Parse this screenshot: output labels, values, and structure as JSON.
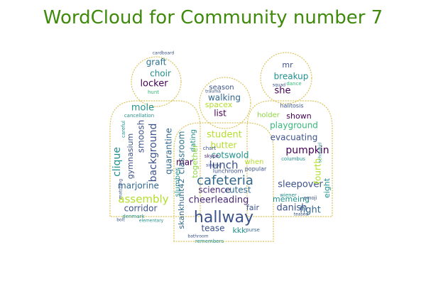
{
  "title": "WordCloud for Community number 7",
  "palette": [
    "#440154",
    "#3b528b",
    "#21918c",
    "#5ec962",
    "#b5de2b",
    "#31688e",
    "#35b779",
    "#482878",
    "#2c728e",
    "#90d743"
  ],
  "outline_color": "#d9c45a",
  "words": [
    {
      "text": "hallway",
      "color": "#3b528b"
    },
    {
      "text": "cafeteria",
      "color": "#31688e"
    },
    {
      "text": "lunch",
      "color": "#3b528b"
    },
    {
      "text": "cheerleading",
      "color": "#482878"
    },
    {
      "text": "assembly",
      "color": "#b5de2b"
    },
    {
      "text": "marjorine",
      "color": "#31688e"
    },
    {
      "text": "pumpkin",
      "color": "#440154"
    },
    {
      "text": "playground",
      "color": "#35b779"
    },
    {
      "text": "sleepover",
      "color": "#3b528b"
    },
    {
      "text": "evacuating",
      "color": "#3b528b"
    },
    {
      "text": "danish",
      "color": "#3b528b"
    },
    {
      "text": "memeing",
      "color": "#21918c"
    },
    {
      "text": "fight",
      "color": "#31688e"
    },
    {
      "text": "fourth",
      "color": "#b5de2b"
    },
    {
      "text": "corridor",
      "color": "#3b528b"
    },
    {
      "text": "clique",
      "color": "#21918c"
    },
    {
      "text": "gymnasium",
      "color": "#3b528b"
    },
    {
      "text": "background",
      "color": "#3b528b"
    },
    {
      "text": "quarantine",
      "color": "#31688e"
    },
    {
      "text": "classroom",
      "color": "#2c728e"
    },
    {
      "text": "dating",
      "color": "#21918c"
    },
    {
      "text": "smoosh",
      "color": "#3b528b"
    },
    {
      "text": "mole",
      "color": "#21918c"
    },
    {
      "text": "locker",
      "color": "#440154"
    },
    {
      "text": "choir",
      "color": "#21918c"
    },
    {
      "text": "graft",
      "color": "#2c728e"
    },
    {
      "text": "walking",
      "color": "#31688e"
    },
    {
      "text": "season",
      "color": "#3b528b"
    },
    {
      "text": "spacex",
      "color": "#b5de2b"
    },
    {
      "text": "list",
      "color": "#440154"
    },
    {
      "text": "student",
      "color": "#b5de2b"
    },
    {
      "text": "butter",
      "color": "#b5de2b"
    },
    {
      "text": "cotswold",
      "color": "#21918c"
    },
    {
      "text": "together",
      "color": "#90d743"
    },
    {
      "text": "mar",
      "color": "#440154"
    },
    {
      "text": "science",
      "color": "#482878"
    },
    {
      "text": "cutest",
      "color": "#31688e"
    },
    {
      "text": "fair",
      "color": "#3b528b"
    },
    {
      "text": "kkk",
      "color": "#21918c"
    },
    {
      "text": "tease",
      "color": "#3b528b"
    },
    {
      "text": "skankhunt42",
      "color": "#31688e"
    },
    {
      "text": "she",
      "color": "#440154"
    },
    {
      "text": "breakup",
      "color": "#21918c"
    },
    {
      "text": "mr",
      "color": "#3b528b"
    },
    {
      "text": "shown",
      "color": "#440154"
    },
    {
      "text": "holder",
      "color": "#90d743"
    },
    {
      "text": "eight",
      "color": "#21918c"
    },
    {
      "text": "when",
      "color": "#b5de2b"
    },
    {
      "text": "lunchroom",
      "color": "#3b528b"
    },
    {
      "text": "slumber",
      "color": "#21918c"
    },
    {
      "text": "halitosis",
      "color": "#3b528b"
    },
    {
      "text": "popular",
      "color": "#3b528b"
    },
    {
      "text": "remembers",
      "color": "#21918c"
    },
    {
      "text": "purse",
      "color": "#31688e"
    },
    {
      "text": "cancellation",
      "color": "#21918c"
    },
    {
      "text": "careful",
      "color": "#21918c"
    },
    {
      "text": "hunt",
      "color": "#35b779"
    },
    {
      "text": "chart",
      "color": "#3b528b"
    },
    {
      "text": "skype",
      "color": "#482878"
    },
    {
      "text": "emoji",
      "color": "#3b528b"
    },
    {
      "text": "columbus",
      "color": "#21918c"
    },
    {
      "text": "dance",
      "color": "#35b779"
    },
    {
      "text": "squad",
      "color": "#3b528b"
    },
    {
      "text": "trauma",
      "color": "#3b528b"
    },
    {
      "text": "matching",
      "color": "#3b528b"
    },
    {
      "text": "denmark",
      "color": "#21918c"
    },
    {
      "text": "bathroom",
      "color": "#3b528b"
    },
    {
      "text": "teased",
      "color": "#3b528b"
    },
    {
      "text": "wiener",
      "color": "#21918c"
    },
    {
      "text": "schoolkid",
      "color": "#21918c"
    },
    {
      "text": "cardboard",
      "color": "#3b528b"
    },
    {
      "text": "singing",
      "color": "#3b528b"
    },
    {
      "text": "elementary",
      "color": "#21918c"
    },
    {
      "text": "bolt",
      "color": "#3b528b"
    }
  ]
}
